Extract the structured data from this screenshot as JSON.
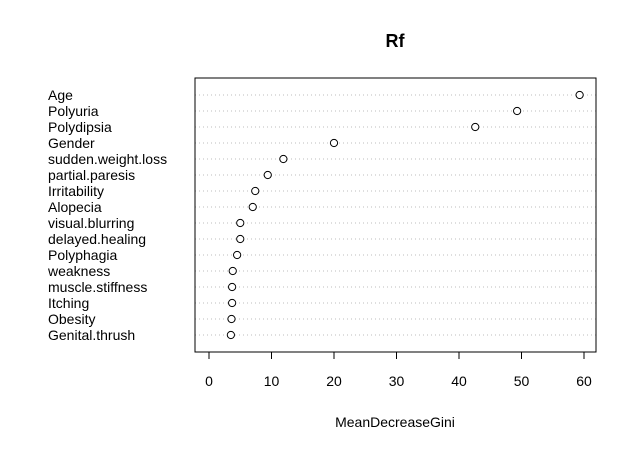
{
  "chart_data": {
    "type": "scatter",
    "title": "Rf",
    "xlabel": "MeanDecreaseGini",
    "ylabel": "",
    "xlim": [
      0,
      60
    ],
    "xticks": [
      "0",
      "10",
      "20",
      "30",
      "40",
      "50",
      "60"
    ],
    "grid": "horizontal dotted",
    "legend": "none",
    "categories": [
      "Age",
      "Polyuria",
      "Polydipsia",
      "Gender",
      "sudden.weight.loss",
      "partial.paresis",
      "Irritability",
      "Alopecia",
      "visual.blurring",
      "delayed.healing",
      "Polyphagia",
      "weakness",
      "muscle.stiffness",
      "Itching",
      "Obesity",
      "Genital.thrush"
    ],
    "values": [
      59.3,
      49.3,
      42.6,
      20.0,
      11.9,
      9.4,
      7.4,
      7.0,
      5.0,
      5.0,
      4.5,
      3.8,
      3.7,
      3.7,
      3.6,
      3.5
    ]
  }
}
